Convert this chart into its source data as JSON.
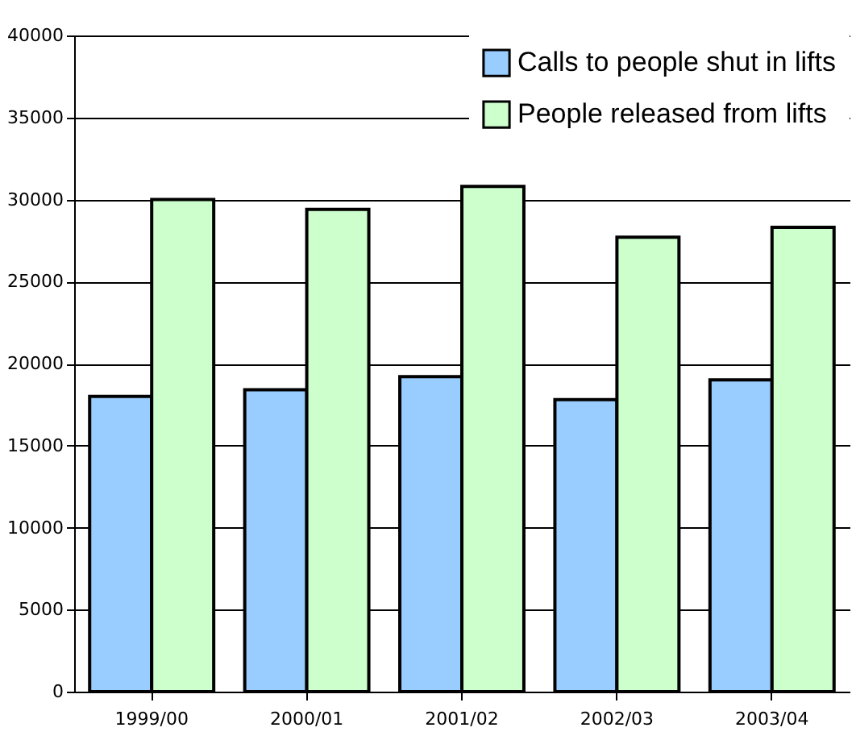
{
  "chart_data": {
    "type": "bar",
    "categories": [
      "1999/00",
      "2000/01",
      "2001/02",
      "2002/03",
      "2003/04"
    ],
    "series": [
      {
        "name": "Calls to people shut in lifts",
        "color": "#99ccff",
        "values": [
          18000,
          18400,
          19200,
          17800,
          19000
        ]
      },
      {
        "name": "People released from lifts",
        "color": "#ccffcc",
        "values": [
          30000,
          29400,
          30800,
          27700,
          28300
        ]
      }
    ],
    "ylim": [
      0,
      40000
    ],
    "yticks": [
      0,
      5000,
      10000,
      15000,
      20000,
      25000,
      30000,
      35000,
      40000
    ],
    "grid": "y",
    "legend": "top right"
  }
}
